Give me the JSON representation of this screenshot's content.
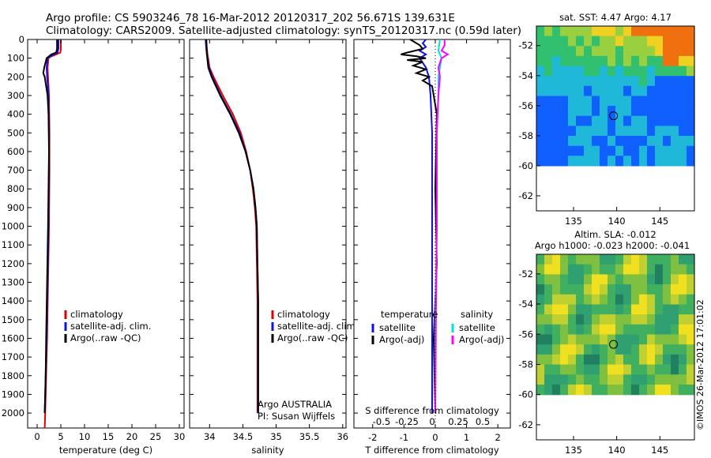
{
  "header": {
    "line1": "Argo profile: CS 5903246_78 16-Mar-2012 20120317_202 56.671S 139.631E",
    "line2": "Climatology: CARS2009. Satellite-adjusted climatology: synTS_20120317.nc (0.59d later)"
  },
  "side_stamp": "©IMOS 26-Mar-2012 17:01:02",
  "colors": {
    "climatology": "#e00000",
    "satellite": "#1010e0",
    "argo": "#000000",
    "sat_salinity": "#00e0e0",
    "argo_salinity": "#ff00ff"
  },
  "chart_data": [
    {
      "type": "line",
      "id": "temperature",
      "xlabel": "temperature (deg C)",
      "ylabel": "",
      "xlim": [
        -2,
        31
      ],
      "ylim": [
        2080,
        0
      ],
      "x_ticks": [
        0,
        5,
        10,
        15,
        20,
        25,
        30
      ],
      "y_ticks": [
        0,
        100,
        200,
        300,
        400,
        500,
        600,
        700,
        800,
        900,
        1000,
        1100,
        1200,
        1300,
        1400,
        1500,
        1600,
        1700,
        1800,
        1900,
        2000
      ],
      "legend": {
        "position": "lower-right",
        "entries": [
          "climatology",
          "satellite-adj. clim.",
          "Argo(..raw -QC)"
        ]
      },
      "series": [
        {
          "name": "climatology",
          "color": "#e00000",
          "points": [
            [
              5.0,
              0
            ],
            [
              5.0,
              50
            ],
            [
              4.9,
              70
            ],
            [
              4.0,
              80
            ],
            [
              3.0,
              90
            ],
            [
              2.4,
              100
            ],
            [
              2.2,
              150
            ],
            [
              2.3,
              200
            ],
            [
              2.5,
              300
            ],
            [
              2.6,
              500
            ],
            [
              2.6,
              700
            ],
            [
              2.5,
              1000
            ],
            [
              2.3,
              1300
            ],
            [
              2.1,
              1600
            ],
            [
              1.9,
              1800
            ],
            [
              1.7,
              2000
            ],
            [
              1.6,
              2080
            ]
          ]
        },
        {
          "name": "satellite-adj. clim.",
          "color": "#1010e0",
          "points": [
            [
              4.5,
              0
            ],
            [
              4.5,
              50
            ],
            [
              4.3,
              70
            ],
            [
              3.6,
              80
            ],
            [
              2.8,
              90
            ],
            [
              2.2,
              100
            ],
            [
              2.0,
              150
            ],
            [
              2.1,
              200
            ],
            [
              2.4,
              300
            ],
            [
              2.5,
              500
            ],
            [
              2.5,
              700
            ],
            [
              2.4,
              1000
            ],
            [
              2.2,
              1300
            ],
            [
              2.0,
              1600
            ],
            [
              1.8,
              1800
            ],
            [
              1.6,
              2000
            ]
          ]
        },
        {
          "name": "Argo(..raw -QC)",
          "color": "#000000",
          "points": [
            [
              4.2,
              0
            ],
            [
              4.2,
              50
            ],
            [
              4.0,
              70
            ],
            [
              3.0,
              80
            ],
            [
              2.0,
              100
            ],
            [
              1.5,
              150
            ],
            [
              1.3,
              180
            ],
            [
              1.6,
              200
            ],
            [
              2.2,
              300
            ],
            [
              2.4,
              400
            ],
            [
              2.5,
              600
            ],
            [
              2.4,
              800
            ],
            [
              2.3,
              1000
            ],
            [
              2.1,
              1300
            ],
            [
              1.9,
              1600
            ],
            [
              1.8,
              1800
            ],
            [
              1.6,
              2000
            ]
          ]
        }
      ]
    },
    {
      "type": "line",
      "id": "salinity",
      "xlabel": "salinity",
      "ylabel": "",
      "xlim": [
        33.7,
        36.05
      ],
      "ylim": [
        2080,
        0
      ],
      "x_ticks": [
        34,
        34.5,
        35,
        35.5,
        36
      ],
      "legend": {
        "position": "lower-right",
        "entries": [
          "climatology",
          "satellite-adj. clim.",
          "Argo(..raw -QC)"
        ]
      },
      "annotations": [
        "Argo AUSTRALIA",
        "PI: Susan Wijffels"
      ],
      "series": [
        {
          "name": "climatology",
          "color": "#e00000",
          "points": [
            [
              33.95,
              0
            ],
            [
              33.96,
              50
            ],
            [
              33.97,
              80
            ],
            [
              34.0,
              150
            ],
            [
              34.06,
              200
            ],
            [
              34.2,
              300
            ],
            [
              34.35,
              400
            ],
            [
              34.47,
              500
            ],
            [
              34.55,
              600
            ],
            [
              34.61,
              700
            ],
            [
              34.65,
              800
            ],
            [
              34.68,
              900
            ],
            [
              34.7,
              1000
            ],
            [
              34.71,
              1200
            ],
            [
              34.72,
              1400
            ],
            [
              34.72,
              2000
            ]
          ]
        },
        {
          "name": "satellite-adj. clim.",
          "color": "#1010e0",
          "points": [
            [
              33.94,
              0
            ],
            [
              33.95,
              50
            ],
            [
              33.96,
              80
            ],
            [
              33.99,
              150
            ],
            [
              34.04,
              200
            ],
            [
              34.17,
              300
            ],
            [
              34.32,
              400
            ],
            [
              34.45,
              500
            ],
            [
              34.54,
              600
            ],
            [
              34.61,
              700
            ],
            [
              34.66,
              800
            ],
            [
              34.69,
              900
            ],
            [
              34.71,
              1000
            ],
            [
              34.72,
              1200
            ],
            [
              34.73,
              1400
            ],
            [
              34.73,
              2000
            ]
          ]
        },
        {
          "name": "Argo(..raw -QC)",
          "color": "#000000",
          "points": [
            [
              33.95,
              0
            ],
            [
              33.96,
              80
            ],
            [
              33.98,
              150
            ],
            [
              34.03,
              200
            ],
            [
              34.16,
              300
            ],
            [
              34.31,
              400
            ],
            [
              34.44,
              500
            ],
            [
              34.54,
              600
            ],
            [
              34.61,
              700
            ],
            [
              34.66,
              800
            ],
            [
              34.69,
              900
            ],
            [
              34.71,
              1000
            ],
            [
              34.72,
              1200
            ],
            [
              34.73,
              1400
            ],
            [
              34.73,
              2000
            ]
          ]
        }
      ]
    },
    {
      "type": "line",
      "id": "difference",
      "xlabel": "T difference from climatology",
      "xlabel_top": "S difference from climatology",
      "xlim": [
        -2.6,
        2.4
      ],
      "ylim": [
        2080,
        0
      ],
      "x_ticks": [
        -2,
        -1,
        0,
        1,
        2
      ],
      "x_ticks_s": [
        "-0.5",
        "-0.25",
        "0",
        "0.25",
        "0.5"
      ],
      "legend": {
        "position": "lower-center",
        "groups": [
          {
            "title": "temperature",
            "entries": [
              "satellite",
              "Argo(-adj)"
            ]
          },
          {
            "title": "salinity",
            "entries": [
              "satellite",
              "Argo(-adj)"
            ]
          }
        ]
      },
      "series": [
        {
          "name": "temperature satellite",
          "color": "#1010e0",
          "points": [
            [
              -0.3,
              0
            ],
            [
              -0.4,
              20
            ],
            [
              -0.3,
              40
            ],
            [
              -0.5,
              60
            ],
            [
              -0.3,
              80
            ],
            [
              -0.5,
              100
            ],
            [
              -0.3,
              150
            ],
            [
              -0.2,
              200
            ],
            [
              -0.15,
              300
            ],
            [
              -0.1,
              500
            ],
            [
              -0.1,
              1000
            ],
            [
              -0.1,
              1500
            ],
            [
              -0.1,
              2000
            ]
          ]
        },
        {
          "name": "temperature Argo(-adj)",
          "color": "#000000",
          "points": [
            [
              -0.8,
              0
            ],
            [
              -0.5,
              30
            ],
            [
              -0.4,
              50
            ],
            [
              -0.9,
              70
            ],
            [
              -1.1,
              80
            ],
            [
              -0.6,
              90
            ],
            [
              -0.3,
              100
            ],
            [
              -0.9,
              110
            ],
            [
              -0.4,
              120
            ],
            [
              -0.7,
              140
            ],
            [
              -0.3,
              160
            ],
            [
              -0.6,
              180
            ],
            [
              -0.2,
              200
            ],
            [
              -0.4,
              220
            ],
            [
              -0.1,
              250
            ],
            [
              0.05,
              400
            ],
            [
              0.0,
              800
            ],
            [
              0.05,
              1200
            ],
            [
              -0.05,
              1600
            ],
            [
              0.0,
              2000
            ]
          ]
        },
        {
          "name": "salinity satellite",
          "color": "#00e0e0",
          "points": [
            [
              0.15,
              0
            ],
            [
              0.1,
              60
            ],
            [
              0.2,
              100
            ],
            [
              0.1,
              200
            ],
            [
              0.1,
              300
            ],
            [
              0.05,
              500
            ],
            [
              0.05,
              1000
            ],
            [
              0.0,
              1500
            ],
            [
              0.0,
              2000
            ]
          ]
        },
        {
          "name": "salinity Argo(-adj)",
          "color": "#ff00ff",
          "points": [
            [
              0.3,
              0
            ],
            [
              0.3,
              30
            ],
            [
              0.2,
              60
            ],
            [
              0.4,
              80
            ],
            [
              0.2,
              100
            ],
            [
              0.1,
              150
            ],
            [
              0.15,
              200
            ],
            [
              0.1,
              300
            ],
            [
              0.05,
              500
            ],
            [
              0.05,
              1000
            ],
            [
              0.02,
              1500
            ],
            [
              0.0,
              2000
            ]
          ]
        }
      ]
    },
    {
      "type": "heatmap",
      "id": "sst_map",
      "title": "sat. SST: 4.47  Argo: 4.17",
      "xlim": [
        130.7,
        149
      ],
      "ylim": [
        -63,
        -50.7
      ],
      "x_ticks": [
        135,
        140,
        145
      ],
      "y_ticks": [
        -52,
        -54,
        -56,
        -58,
        -60,
        -62
      ],
      "data_bottom": -60,
      "argo_position": {
        "lon": 139.631,
        "lat": -56.671
      }
    },
    {
      "type": "heatmap",
      "id": "sla_map",
      "title_line1": "Altim. SLA: -0.012",
      "title_line2": "Argo h1000: -0.023 h2000: -0.041",
      "xlim": [
        130.7,
        149
      ],
      "ylim": [
        -63,
        -50.7
      ],
      "x_ticks": [
        135,
        140,
        145
      ],
      "y_ticks": [
        -52,
        -54,
        -56,
        -58,
        -60,
        -62
      ],
      "data_bottom": -60,
      "argo_position": {
        "lon": 139.631,
        "lat": -56.671
      }
    }
  ]
}
